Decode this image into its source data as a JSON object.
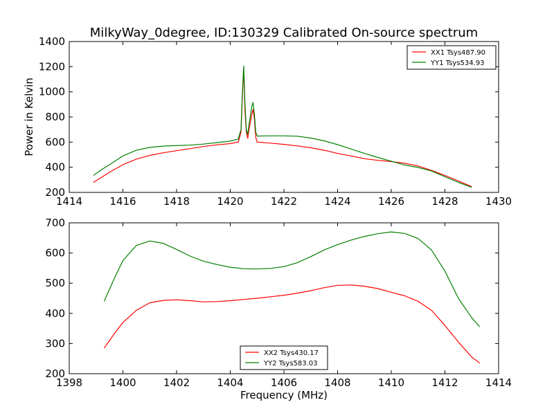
{
  "title": "MilkyWay_0degree, ID:130329 Calibrated On-source spectrum",
  "colors": {
    "xx": "#ff0000",
    "yy": "#008000",
    "axes": "#000000",
    "background": "#ffffff"
  },
  "chart_data": [
    {
      "type": "line",
      "ylabel": "Power in Kelvin",
      "xlabel": "",
      "xlim": [
        1414,
        1430
      ],
      "ylim": [
        200,
        1400
      ],
      "xticks": [
        1414,
        1416,
        1418,
        1420,
        1422,
        1424,
        1426,
        1428,
        1430
      ],
      "yticks": [
        200,
        400,
        600,
        800,
        1000,
        1200,
        1400
      ],
      "legend_position": "top-right",
      "series": [
        {
          "name": "XX1 Tsys487.90",
          "color": "#ff0000",
          "x": [
            1414.9,
            1415.2,
            1415.5,
            1416.0,
            1416.5,
            1417.0,
            1417.5,
            1418.0,
            1418.5,
            1419.0,
            1419.5,
            1420.0,
            1420.3,
            1420.4,
            1420.45,
            1420.5,
            1420.55,
            1420.6,
            1420.65,
            1420.7,
            1420.8,
            1420.85,
            1420.9,
            1420.95,
            1421.0,
            1421.5,
            1422.0,
            1422.5,
            1423.0,
            1423.5,
            1424.0,
            1424.5,
            1425.0,
            1425.5,
            1426.0,
            1426.5,
            1427.0,
            1427.5,
            1428.0,
            1428.5,
            1429.0
          ],
          "y": [
            280,
            320,
            360,
            420,
            465,
            495,
            515,
            532,
            548,
            565,
            578,
            588,
            600,
            680,
            950,
            1175,
            850,
            680,
            630,
            700,
            820,
            860,
            780,
            640,
            600,
            592,
            582,
            570,
            555,
            535,
            510,
            490,
            468,
            455,
            445,
            432,
            410,
            375,
            335,
            290,
            245
          ]
        },
        {
          "name": "YY1 Tsys534.93",
          "color": "#008000",
          "x": [
            1414.9,
            1415.2,
            1415.5,
            1416.0,
            1416.5,
            1417.0,
            1417.5,
            1418.0,
            1418.5,
            1419.0,
            1419.5,
            1420.0,
            1420.3,
            1420.4,
            1420.45,
            1420.5,
            1420.55,
            1420.6,
            1420.65,
            1420.7,
            1420.8,
            1420.85,
            1420.9,
            1420.95,
            1421.0,
            1421.5,
            1422.0,
            1422.5,
            1423.0,
            1423.5,
            1424.0,
            1424.5,
            1425.0,
            1425.5,
            1426.0,
            1426.5,
            1427.0,
            1427.5,
            1428.0,
            1428.5,
            1429.0
          ],
          "y": [
            335,
            380,
            420,
            490,
            535,
            558,
            568,
            572,
            576,
            584,
            596,
            608,
            625,
            700,
            980,
            1205,
            900,
            700,
            660,
            740,
            880,
            915,
            820,
            680,
            648,
            650,
            650,
            647,
            632,
            610,
            580,
            545,
            510,
            478,
            448,
            418,
            398,
            370,
            325,
            280,
            240
          ]
        }
      ]
    },
    {
      "type": "line",
      "xlabel": "Frequency (MHz)",
      "ylabel": "",
      "xlim": [
        1398,
        1414
      ],
      "ylim": [
        200,
        700
      ],
      "xticks": [
        1398,
        1400,
        1402,
        1404,
        1406,
        1408,
        1410,
        1412,
        1414
      ],
      "yticks": [
        200,
        300,
        400,
        500,
        600,
        700
      ],
      "legend_position": "bottom-center",
      "series": [
        {
          "name": "XX2 Tsys430.17",
          "color": "#ff0000",
          "x": [
            1399.3,
            1399.7,
            1400.0,
            1400.5,
            1401.0,
            1401.5,
            1402.0,
            1402.5,
            1403.0,
            1403.5,
            1404.0,
            1404.5,
            1405.0,
            1405.5,
            1406.0,
            1406.5,
            1407.0,
            1407.5,
            1408.0,
            1408.5,
            1409.0,
            1409.5,
            1410.0,
            1410.5,
            1411.0,
            1411.5,
            1412.0,
            1412.5,
            1413.0,
            1413.3
          ],
          "y": [
            285,
            335,
            370,
            410,
            435,
            443,
            445,
            442,
            438,
            439,
            442,
            446,
            450,
            455,
            460,
            467,
            475,
            485,
            493,
            494,
            490,
            482,
            470,
            458,
            440,
            410,
            360,
            305,
            255,
            235
          ]
        },
        {
          "name": "YY2 Tsys583.03",
          "color": "#008000",
          "x": [
            1399.3,
            1399.7,
            1400.0,
            1400.5,
            1401.0,
            1401.5,
            1402.0,
            1402.5,
            1403.0,
            1403.5,
            1404.0,
            1404.5,
            1405.0,
            1405.5,
            1406.0,
            1406.5,
            1407.0,
            1407.5,
            1408.0,
            1408.5,
            1409.0,
            1409.5,
            1410.0,
            1410.5,
            1411.0,
            1411.5,
            1412.0,
            1412.5,
            1413.0,
            1413.3
          ],
          "y": [
            440,
            520,
            575,
            625,
            640,
            632,
            612,
            590,
            573,
            562,
            553,
            548,
            547,
            549,
            555,
            568,
            588,
            610,
            628,
            643,
            655,
            664,
            670,
            665,
            648,
            610,
            540,
            450,
            385,
            355
          ]
        }
      ]
    }
  ]
}
